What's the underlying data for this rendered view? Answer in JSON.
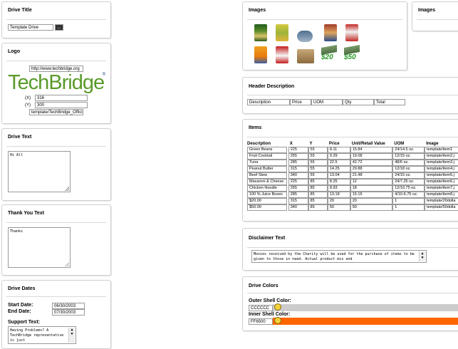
{
  "drive_title": {
    "heading": "Drive Title",
    "value": "Template Drive",
    "btn": "..."
  },
  "logo": {
    "heading": "Logo",
    "url": "http://www.techbridge.org",
    "brand": "TechBridge",
    "x_label": "(X)",
    "x_value": "316",
    "y_label": "(Y)",
    "y_value": "300",
    "file": "template/TechBridge_Offici"
  },
  "drive_text": {
    "heading": "Drive Text",
    "value": "Hi All"
  },
  "thank_you": {
    "heading": "Thank You Text",
    "value": "Thanks"
  },
  "drive_dates": {
    "heading": "Drive Dates",
    "start_label": "Start Date:",
    "start_value": "06/30/2003",
    "end_label": "End Date:",
    "end_value": "07/30/2003",
    "support_label": "Support Text:",
    "support_value": "Having Problems? A TechBridge representative is just"
  },
  "images": {
    "heading": "Images",
    "heading2": "Images",
    "price1": "$20",
    "price2": "$50"
  },
  "header_desc": {
    "heading": "Header Description",
    "cols": [
      "Description",
      "Price",
      "UOM",
      "Qty",
      "Total"
    ]
  },
  "items": {
    "heading": "Items",
    "columns": [
      "Description",
      "X",
      "Y",
      "Price",
      "Unit/Retail Value",
      "UOM",
      "Image"
    ],
    "rows": [
      [
        "Green Beans",
        "225",
        "55",
        "8.11",
        "15.84",
        "24/14.5 oz.",
        "template/item1"
      ],
      [
        "Fruit Cocktail",
        "255",
        "55",
        "9.29",
        "19.08",
        "12/15 oz.",
        "template/item2.j"
      ],
      [
        "Tuna",
        "285",
        "55",
        "22.5",
        "42.72",
        "48/6 oz.",
        "template/item3.j"
      ],
      [
        "Peanut Butter",
        "315",
        "55",
        "14.25",
        "29.88",
        "12/18 oz.",
        "template/item4.j"
      ],
      [
        "Beef Stew",
        "340",
        "55",
        "13.04",
        "21.48",
        "24/15 oz.",
        "template/item5.j"
      ],
      [
        "Macaroni & Cheese",
        "225",
        "85",
        "8.25",
        "12",
        "24/7.25 oz.",
        "template/item6.j"
      ],
      [
        "Chicken Noodle",
        "255",
        "85",
        "8.93",
        "18",
        "12/10.75 oz.",
        "template/item7.j"
      ],
      [
        "100 % Juice Boxes",
        "285",
        "85",
        "13.18",
        "15.16",
        "4/10-6.75 oz.",
        "template/item8.j"
      ],
      [
        "$20.00",
        "315",
        "85",
        "20",
        "20",
        "1",
        "template/20dolla"
      ],
      [
        "$50.00",
        "340",
        "85",
        "50",
        "50",
        "1",
        "template/50dolla"
      ]
    ]
  },
  "disclaimer": {
    "heading": "Disclaimer Text",
    "value": "Monies received by the Charity will be used for the purchase of items to be given to those in need.  Actual product mix and"
  },
  "drive_colors": {
    "heading": "Drive Colors",
    "outer_label": "Outer Shell Color:",
    "outer_value": "CCCCCC",
    "outer_color": "#CCCCCC",
    "inner_label": "Inner Shell Color:",
    "inner_value": "FF6500",
    "inner_color": "#FF6500"
  }
}
